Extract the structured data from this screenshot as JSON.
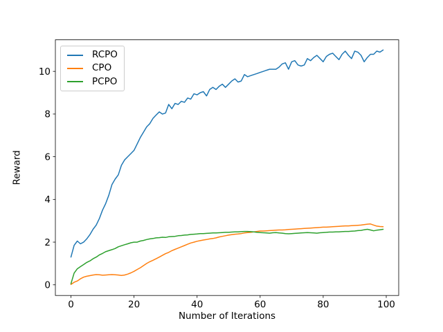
{
  "figure": {
    "background": "#ffffff",
    "title": ""
  },
  "chart_data": {
    "type": "line",
    "title": "",
    "xlabel": "Number of Iterations",
    "ylabel": "Reward",
    "xlim": [
      -4.95,
      103.95
    ],
    "ylim": [
      -0.5,
      11.48
    ],
    "xticks": [
      0,
      20,
      40,
      60,
      80,
      100
    ],
    "yticks": [
      0,
      2,
      4,
      6,
      8,
      10
    ],
    "grid": false,
    "legend": {
      "position": "upper left",
      "entries": [
        "RCPO",
        "CPO",
        "PCPO"
      ]
    },
    "x_start": 0,
    "x_step": 1,
    "n_points": 100,
    "series": [
      {
        "name": "RCPO",
        "color": "#1f77b4",
        "values": [
          1.3,
          1.85,
          2.05,
          1.92,
          2.0,
          2.15,
          2.35,
          2.6,
          2.8,
          3.1,
          3.5,
          3.8,
          4.2,
          4.7,
          4.95,
          5.15,
          5.6,
          5.85,
          6.0,
          6.15,
          6.3,
          6.6,
          6.9,
          7.15,
          7.4,
          7.55,
          7.8,
          7.95,
          8.1,
          8.0,
          8.05,
          8.45,
          8.25,
          8.5,
          8.45,
          8.6,
          8.55,
          8.75,
          8.7,
          8.95,
          8.9,
          9.0,
          9.05,
          8.85,
          9.15,
          9.25,
          9.15,
          9.3,
          9.4,
          9.25,
          9.4,
          9.55,
          9.65,
          9.5,
          9.55,
          9.85,
          9.75,
          9.8,
          9.85,
          9.9,
          9.95,
          10.0,
          10.05,
          10.1,
          10.1,
          10.1,
          10.2,
          10.35,
          10.4,
          10.1,
          10.45,
          10.5,
          10.3,
          10.25,
          10.3,
          10.6,
          10.5,
          10.65,
          10.75,
          10.6,
          10.45,
          10.7,
          10.8,
          10.85,
          10.7,
          10.55,
          10.8,
          10.95,
          10.75,
          10.6,
          10.95,
          10.9,
          10.75,
          10.45,
          10.65,
          10.8,
          10.8,
          10.95,
          10.9,
          11.0
        ]
      },
      {
        "name": "CPO",
        "color": "#ff7f0e",
        "values": [
          0.02,
          0.12,
          0.18,
          0.28,
          0.36,
          0.4,
          0.43,
          0.46,
          0.48,
          0.47,
          0.45,
          0.46,
          0.47,
          0.48,
          0.47,
          0.46,
          0.44,
          0.46,
          0.5,
          0.56,
          0.63,
          0.72,
          0.8,
          0.9,
          1.0,
          1.08,
          1.15,
          1.22,
          1.3,
          1.38,
          1.46,
          1.52,
          1.6,
          1.66,
          1.72,
          1.78,
          1.84,
          1.9,
          1.96,
          2.0,
          2.04,
          2.07,
          2.1,
          2.12,
          2.15,
          2.17,
          2.2,
          2.24,
          2.27,
          2.3,
          2.33,
          2.35,
          2.37,
          2.38,
          2.4,
          2.43,
          2.45,
          2.46,
          2.48,
          2.5,
          2.52,
          2.52,
          2.53,
          2.54,
          2.55,
          2.56,
          2.57,
          2.57,
          2.58,
          2.59,
          2.6,
          2.61,
          2.62,
          2.63,
          2.64,
          2.65,
          2.66,
          2.67,
          2.68,
          2.69,
          2.7,
          2.7,
          2.71,
          2.72,
          2.73,
          2.74,
          2.75,
          2.76,
          2.76,
          2.77,
          2.78,
          2.79,
          2.8,
          2.82,
          2.84,
          2.85,
          2.8,
          2.75,
          2.73,
          2.72
        ]
      },
      {
        "name": "PCPO",
        "color": "#2ca02c",
        "values": [
          0.05,
          0.55,
          0.75,
          0.85,
          0.95,
          1.05,
          1.12,
          1.22,
          1.3,
          1.4,
          1.47,
          1.55,
          1.6,
          1.65,
          1.7,
          1.78,
          1.83,
          1.88,
          1.92,
          1.97,
          2.0,
          2.0,
          2.05,
          2.08,
          2.12,
          2.15,
          2.17,
          2.2,
          2.21,
          2.23,
          2.22,
          2.25,
          2.26,
          2.27,
          2.3,
          2.31,
          2.33,
          2.34,
          2.36,
          2.37,
          2.38,
          2.4,
          2.4,
          2.41,
          2.42,
          2.43,
          2.43,
          2.44,
          2.45,
          2.46,
          2.46,
          2.47,
          2.48,
          2.48,
          2.49,
          2.5,
          2.5,
          2.49,
          2.48,
          2.46,
          2.45,
          2.44,
          2.43,
          2.42,
          2.44,
          2.45,
          2.43,
          2.42,
          2.4,
          2.39,
          2.4,
          2.41,
          2.42,
          2.43,
          2.44,
          2.45,
          2.44,
          2.43,
          2.42,
          2.44,
          2.45,
          2.46,
          2.47,
          2.47,
          2.48,
          2.48,
          2.49,
          2.5,
          2.5,
          2.51,
          2.52,
          2.54,
          2.55,
          2.58,
          2.6,
          2.57,
          2.53,
          2.56,
          2.58,
          2.6
        ]
      }
    ]
  }
}
